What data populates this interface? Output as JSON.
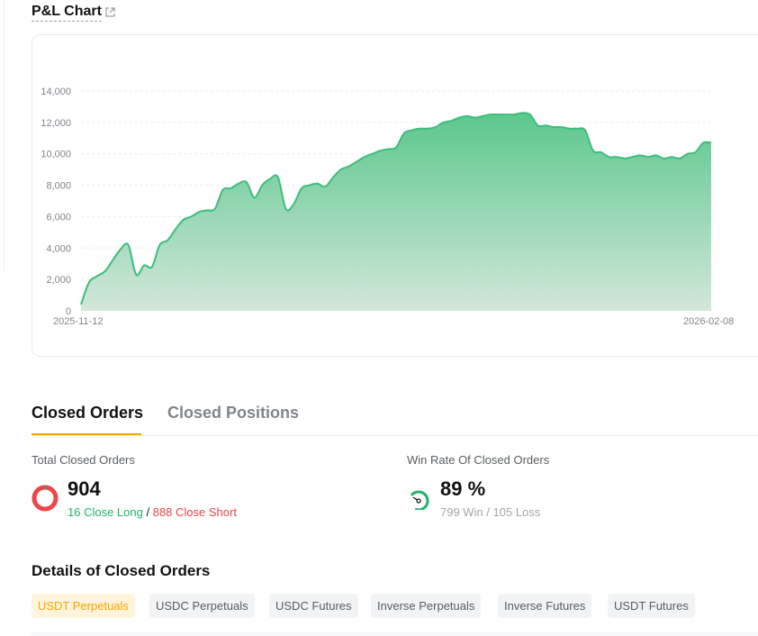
{
  "pnl_chart": {
    "title": "P&L Chart",
    "link_icon": "external-link-icon"
  },
  "chart_data": {
    "type": "area",
    "title": "",
    "xlabel": "",
    "ylabel": "",
    "x_tick_labels": [
      "2025-11-12",
      "2026-02-08"
    ],
    "y_ticks": [
      0,
      2000,
      4000,
      6000,
      8000,
      10000,
      12000,
      14000
    ],
    "y_tick_labels": [
      "0",
      "2,000",
      "4,000",
      "6,000",
      "8,000",
      "10,000",
      "12,000",
      "14,000"
    ],
    "ylim": [
      0,
      14000
    ],
    "grid": true,
    "series_color": "#3dbd7d",
    "values": [
      400,
      1800,
      2200,
      2500,
      3200,
      3900,
      4200,
      2300,
      2900,
      2800,
      4200,
      4500,
      5200,
      5800,
      6000,
      6300,
      6400,
      6500,
      7700,
      7800,
      8100,
      8200,
      7200,
      8000,
      8400,
      8500,
      6500,
      6800,
      7800,
      8000,
      8100,
      7900,
      8500,
      9000,
      9200,
      9500,
      9800,
      10000,
      10200,
      10300,
      10400,
      11300,
      11500,
      11600,
      11600,
      11700,
      12000,
      12100,
      12300,
      12400,
      12300,
      12400,
      12500,
      12500,
      12500,
      12500,
      12600,
      12500,
      11800,
      11800,
      11700,
      11700,
      11600,
      11600,
      11500,
      10200,
      10100,
      9800,
      9800,
      9700,
      9800,
      9900,
      9800,
      9900,
      9700,
      9800,
      9700,
      10000,
      10100,
      10700,
      10700
    ]
  },
  "tabs": [
    {
      "label": "Closed Orders",
      "active": true
    },
    {
      "label": "Closed Positions",
      "active": false
    }
  ],
  "stats": {
    "total": {
      "label": "Total Closed Orders",
      "value": "904",
      "long_text": "16 Close Long",
      "separator": "/",
      "short_text": "888 Close Short",
      "long_fraction": 0.0177,
      "long_color": "#20b26c",
      "short_color": "#ef454a"
    },
    "winrate": {
      "label": "Win Rate Of Closed Orders",
      "value": "89 %",
      "sub": "799 Win / 105 Loss",
      "fraction": 0.89,
      "color": "#20b26c"
    }
  },
  "details": {
    "title": "Details of Closed Orders",
    "chips": [
      {
        "label": "USDT Perpetuals",
        "active": true
      },
      {
        "label": "USDC Perpetuals",
        "active": false
      },
      {
        "label": "USDC Futures",
        "active": false
      },
      {
        "label": "Inverse Perpetuals",
        "active": false
      },
      {
        "label": "Inverse Futures",
        "active": false
      },
      {
        "label": "USDT Futures",
        "active": false
      }
    ]
  },
  "colors": {
    "accent": "#f7a600",
    "positive": "#20b26c",
    "negative": "#ef454a"
  }
}
